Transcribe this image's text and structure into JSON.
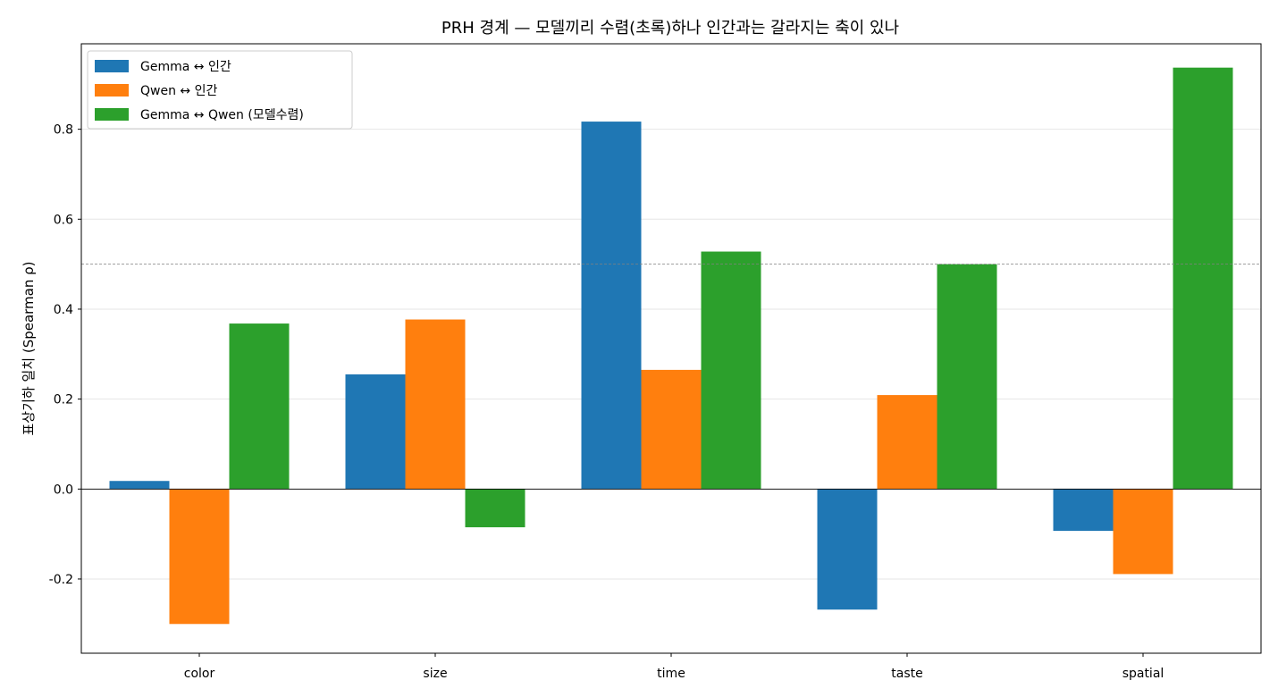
{
  "chart_data": {
    "type": "bar",
    "title": "PRH 경계 — 모델끼리 수렴(초록)하나 인간과는 갈라지는 축이 있나",
    "xlabel": "",
    "ylabel": "표상기하 일치 (Spearman ρ)",
    "categories": [
      "color",
      "size",
      "time",
      "taste",
      "spatial"
    ],
    "series": [
      {
        "name": "Gemma ↔ 인간",
        "color": "#1f77b4",
        "values": [
          0.018,
          0.255,
          0.817,
          -0.268,
          -0.093
        ]
      },
      {
        "name": "Qwen ↔ 인간",
        "color": "#ff7f0e",
        "values": [
          -0.3,
          0.377,
          0.265,
          0.209,
          -0.189
        ]
      },
      {
        "name": "Gemma ↔ Qwen (모델수렴)",
        "color": "#2ca02c",
        "values": [
          0.368,
          -0.085,
          0.528,
          0.5,
          0.937
        ]
      }
    ],
    "ylim": [
      -0.365,
      0.99
    ],
    "yticks": [
      -0.2,
      0.0,
      0.2,
      0.4,
      0.6,
      0.8
    ],
    "ytick_labels": [
      "-0.2",
      "0.0",
      "0.2",
      "0.4",
      "0.6",
      "0.8"
    ],
    "reference_line": 0.5,
    "grid": "horizontal",
    "legend": "top-left"
  }
}
